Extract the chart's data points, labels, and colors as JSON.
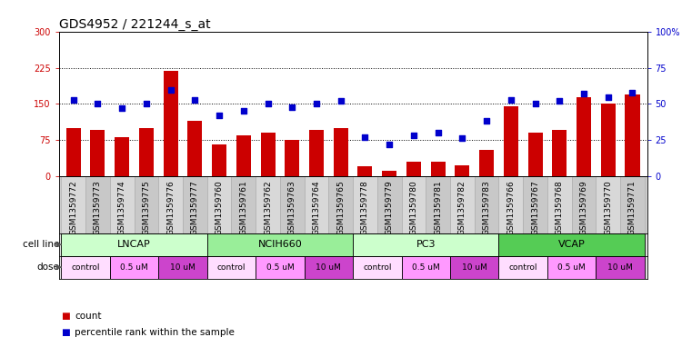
{
  "title": "GDS4952 / 221244_s_at",
  "samples": [
    "GSM1359772",
    "GSM1359773",
    "GSM1359774",
    "GSM1359775",
    "GSM1359776",
    "GSM1359777",
    "GSM1359760",
    "GSM1359761",
    "GSM1359762",
    "GSM1359763",
    "GSM1359764",
    "GSM1359765",
    "GSM1359778",
    "GSM1359779",
    "GSM1359780",
    "GSM1359781",
    "GSM1359782",
    "GSM1359783",
    "GSM1359766",
    "GSM1359767",
    "GSM1359768",
    "GSM1359769",
    "GSM1359770",
    "GSM1359771"
  ],
  "bar_values": [
    100,
    95,
    80,
    100,
    220,
    115,
    65,
    85,
    90,
    75,
    95,
    100,
    20,
    10,
    30,
    30,
    22,
    55,
    145,
    90,
    95,
    165,
    150,
    170
  ],
  "dot_values_pct": [
    53,
    50,
    47,
    50,
    60,
    53,
    42,
    45,
    50,
    48,
    50,
    52,
    27,
    22,
    28,
    30,
    26,
    38,
    53,
    50,
    52,
    57,
    55,
    58
  ],
  "cell_lines": [
    {
      "label": "LNCAP",
      "start": 0,
      "end": 6,
      "color": "#ccffcc"
    },
    {
      "label": "NCIH660",
      "start": 6,
      "end": 12,
      "color": "#99ee99"
    },
    {
      "label": "PC3",
      "start": 12,
      "end": 18,
      "color": "#ccffcc"
    },
    {
      "label": "VCAP",
      "start": 18,
      "end": 24,
      "color": "#55cc55"
    }
  ],
  "dose_groups": [
    {
      "label": "control",
      "start": 0,
      "end": 2,
      "color": "#ffddff"
    },
    {
      "label": "0.5 uM",
      "start": 2,
      "end": 4,
      "color": "#ff99ff"
    },
    {
      "label": "10 uM",
      "start": 4,
      "end": 6,
      "color": "#dd44dd"
    },
    {
      "label": "control",
      "start": 6,
      "end": 8,
      "color": "#ffddff"
    },
    {
      "label": "0.5 uM",
      "start": 8,
      "end": 10,
      "color": "#ff99ff"
    },
    {
      "label": "10 uM",
      "start": 10,
      "end": 12,
      "color": "#dd44dd"
    },
    {
      "label": "control",
      "start": 12,
      "end": 14,
      "color": "#ffddff"
    },
    {
      "label": "0.5 uM",
      "start": 14,
      "end": 16,
      "color": "#ff99ff"
    },
    {
      "label": "10 uM",
      "start": 16,
      "end": 18,
      "color": "#dd44dd"
    },
    {
      "label": "control",
      "start": 18,
      "end": 20,
      "color": "#ffddff"
    },
    {
      "label": "0.5 uM",
      "start": 20,
      "end": 22,
      "color": "#ff99ff"
    },
    {
      "label": "10 uM",
      "start": 22,
      "end": 24,
      "color": "#dd44dd"
    }
  ],
  "bar_color": "#cc0000",
  "dot_color": "#0000cc",
  "left_ylim": [
    0,
    300
  ],
  "left_yticks": [
    0,
    75,
    150,
    225,
    300
  ],
  "right_ylim": [
    0,
    100
  ],
  "right_yticks": [
    0,
    25,
    50,
    75,
    100
  ],
  "hlines": [
    75,
    150,
    225
  ],
  "bg_color": "#ffffff",
  "title_fontsize": 10,
  "tick_fontsize": 7,
  "label_fontsize": 8
}
